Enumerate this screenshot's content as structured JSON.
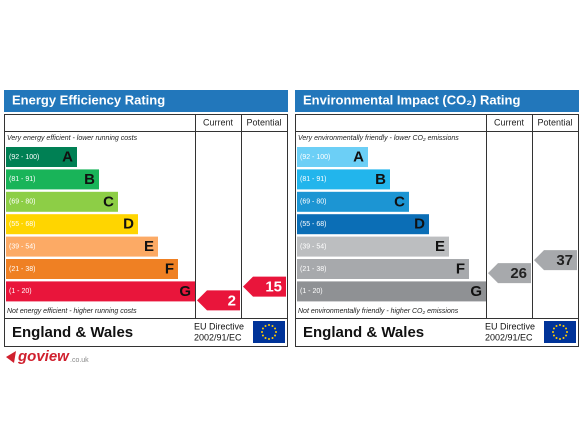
{
  "panels": [
    {
      "title": "Energy Efficiency Rating",
      "columns": [
        "Current",
        "Potential"
      ],
      "top_note": "Very energy efficient - lower running costs",
      "bands": [
        {
          "range": "(92 - 100)",
          "letter": "A",
          "color": "#008054"
        },
        {
          "range": "(81 - 91)",
          "letter": "B",
          "color": "#19b459"
        },
        {
          "range": "(69 - 80)",
          "letter": "C",
          "color": "#8dce46"
        },
        {
          "range": "(55 - 68)",
          "letter": "D",
          "color": "#ffd500"
        },
        {
          "range": "(39 - 54)",
          "letter": "E",
          "color": "#fcaa65"
        },
        {
          "range": "(21 - 38)",
          "letter": "F",
          "color": "#ef8023"
        },
        {
          "range": "(1 - 20)",
          "letter": "G",
          "color": "#e9153b"
        }
      ],
      "bottom_note": "Not energy efficient - higher running costs",
      "current": 2,
      "potential": 15,
      "arrow_color": "#e9153b",
      "arrow_text_color": "#ffffff",
      "footer": "England & Wales",
      "directive": [
        "EU Directive",
        "2002/91/EC"
      ]
    },
    {
      "title": "Environmental Impact (CO₂) Rating",
      "columns": [
        "Current",
        "Potential"
      ],
      "top_note": "Very environmentally friendly - lower CO₂ emissions",
      "bands": [
        {
          "range": "(92 - 100)",
          "letter": "A",
          "color": "#6ccff6"
        },
        {
          "range": "(81 - 91)",
          "letter": "B",
          "color": "#22b5ec"
        },
        {
          "range": "(69 - 80)",
          "letter": "C",
          "color": "#1c95d3"
        },
        {
          "range": "(55 - 68)",
          "letter": "D",
          "color": "#0b6eb6"
        },
        {
          "range": "(39 - 54)",
          "letter": "E",
          "color": "#bcbec0"
        },
        {
          "range": "(21 - 38)",
          "letter": "F",
          "color": "#a7a9ac"
        },
        {
          "range": "(1 - 20)",
          "letter": "G",
          "color": "#8f9194"
        }
      ],
      "bottom_note": "Not environmentally friendly - higher CO₂ emissions",
      "current": 26,
      "potential": 37,
      "arrow_color": "#a7a9ac",
      "arrow_text_color": "#222222",
      "footer": "England & Wales",
      "directive": [
        "EU Directive",
        "2002/91/EC"
      ]
    }
  ],
  "logo": {
    "name": "goview",
    "suffix": ".co.uk"
  }
}
